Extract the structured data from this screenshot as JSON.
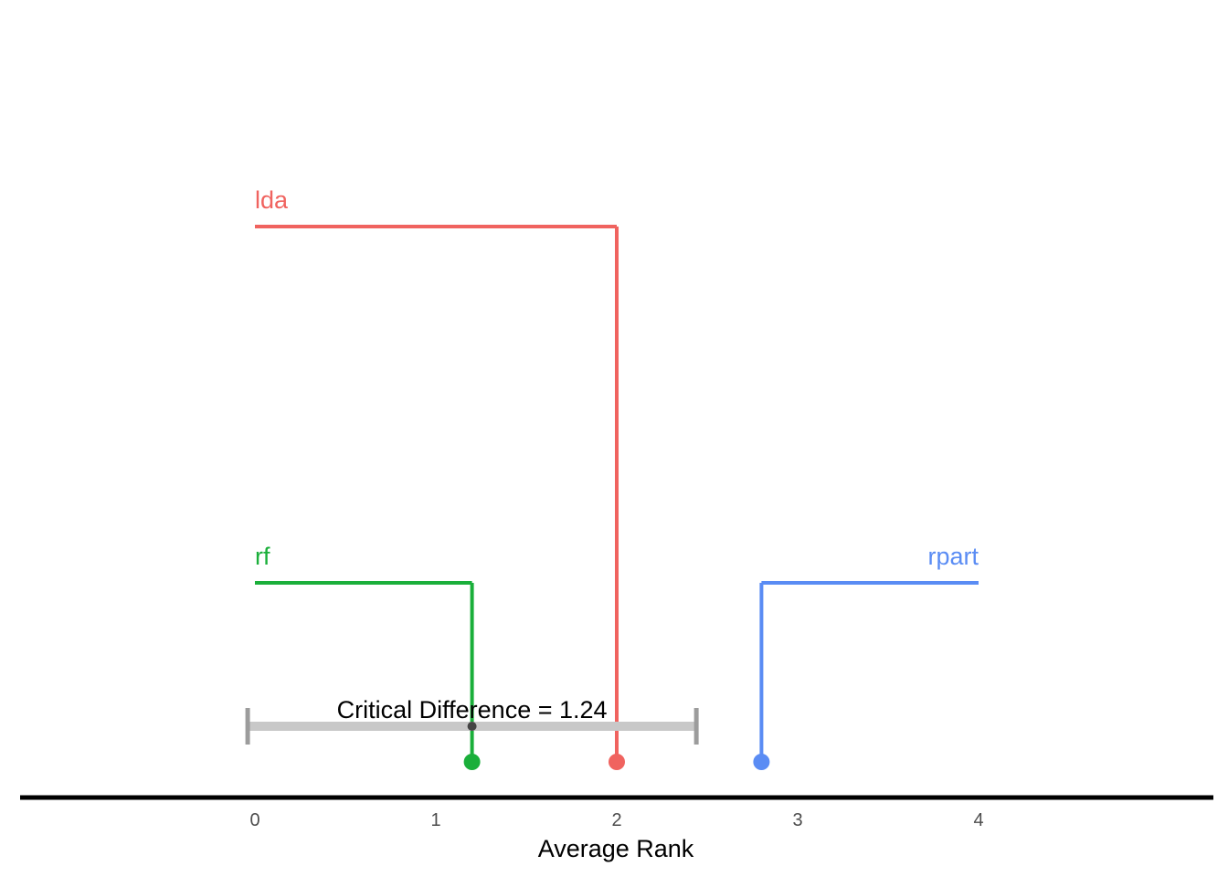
{
  "chart_data": {
    "type": "critical-difference",
    "title": "",
    "xlabel": "Average Rank",
    "ylabel": "",
    "xlim": [
      0,
      4
    ],
    "ticks": [
      0,
      1,
      2,
      3,
      4
    ],
    "tick_labels": [
      "0",
      "1",
      "2",
      "3",
      "4"
    ],
    "grid": false,
    "legend": "none",
    "learners": [
      {
        "name": "rf",
        "rank": 1.2,
        "label_side": "left",
        "level": "low",
        "color": "#1aaf3a"
      },
      {
        "name": "lda",
        "rank": 2.0,
        "label_side": "left",
        "level": "high",
        "color": "#f0635f"
      },
      {
        "name": "rpart",
        "rank": 2.8,
        "label_side": "right",
        "level": "low",
        "color": "#5a8cf4"
      }
    ],
    "critical_difference": {
      "value": 1.24,
      "center": 1.2,
      "range": [
        -0.04,
        2.44
      ],
      "label": "Critical Difference = 1.24",
      "bar_color": "#c8c8c8",
      "cap_color": "#9c9c9c",
      "center_color": "#444444"
    },
    "axis_color": "#000000"
  }
}
